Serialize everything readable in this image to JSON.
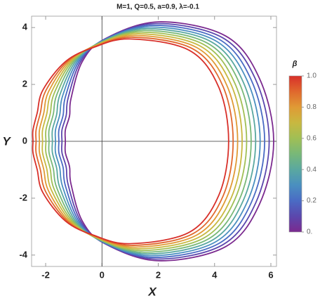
{
  "chart_data": {
    "type": "closed-curve",
    "title": "M=1, Q=0.5, a=0.9, λ=-0.1",
    "x_label": "X",
    "y_label": "Y",
    "xlim": [
      -2.5,
      6.2
    ],
    "ylim": [
      -4.4,
      4.4
    ],
    "xticks": [
      -2,
      0,
      2,
      4,
      6
    ],
    "yticks": [
      -4,
      -2,
      0,
      2,
      4
    ],
    "series": [
      {
        "color": "#7b2a8f",
        "x": [
          6.1,
          5.6,
          4.4,
          2.0,
          0.1,
          -0.7,
          -1.1,
          -1.15,
          -1.3,
          -1.3,
          -1.3,
          -1.15,
          -1.1,
          -0.7,
          0.1,
          2.0,
          4.4,
          5.6
        ],
        "y": [
          0,
          2.2,
          3.7,
          4.2,
          3.6,
          2.8,
          1.5,
          0.9,
          0.4,
          0,
          -0.4,
          -0.9,
          -1.5,
          -2.8,
          -3.6,
          -4.2,
          -3.7,
          -2.2
        ]
      },
      {
        "color": "#5b47ad",
        "x": [
          5.94,
          5.46,
          4.27,
          1.9,
          0.06,
          -0.76,
          -1.2,
          -1.27,
          -1.42,
          -1.42,
          -1.42,
          -1.27,
          -1.2,
          -0.76,
          0.06,
          1.9,
          4.27,
          5.46
        ],
        "y": [
          0,
          2.17,
          3.65,
          4.14,
          3.57,
          2.8,
          1.53,
          0.91,
          0.4,
          0,
          -0.4,
          -0.91,
          -1.53,
          -2.8,
          -3.57,
          -4.14,
          -3.65,
          -2.17
        ]
      },
      {
        "color": "#4a6bc4",
        "x": [
          5.78,
          5.31,
          4.14,
          1.8,
          0.02,
          -0.82,
          -1.3,
          -1.38,
          -1.53,
          -1.53,
          -1.53,
          -1.38,
          -1.3,
          -0.82,
          0.02,
          1.8,
          4.14,
          5.31
        ],
        "y": [
          0,
          2.14,
          3.6,
          4.08,
          3.54,
          2.8,
          1.56,
          0.92,
          0.4,
          0,
          -0.4,
          -0.92,
          -1.56,
          -2.8,
          -3.54,
          -4.08,
          -3.6,
          -2.14
        ]
      },
      {
        "color": "#4a8fc0",
        "x": [
          5.62,
          5.17,
          4.01,
          1.7,
          -0.02,
          -0.88,
          -1.4,
          -1.5,
          -1.65,
          -1.65,
          -1.65,
          -1.5,
          -1.4,
          -0.88,
          -0.02,
          1.7,
          4.01,
          5.17
        ],
        "y": [
          0,
          2.11,
          3.55,
          4.02,
          3.51,
          2.8,
          1.59,
          0.93,
          0.4,
          0,
          -0.4,
          -0.93,
          -1.59,
          -2.8,
          -3.51,
          -4.02,
          -3.55,
          -2.11
        ]
      },
      {
        "color": "#5aa8a0",
        "x": [
          5.46,
          5.02,
          3.88,
          1.6,
          -0.06,
          -0.94,
          -1.5,
          -1.61,
          -1.76,
          -1.76,
          -1.76,
          -1.61,
          -1.5,
          -0.94,
          -0.06,
          1.6,
          3.88,
          5.02
        ],
        "y": [
          0,
          2.08,
          3.5,
          3.96,
          3.48,
          2.8,
          1.62,
          0.94,
          0.4,
          0,
          -0.4,
          -0.94,
          -1.62,
          -2.8,
          -3.48,
          -3.96,
          -3.5,
          -2.08
        ]
      },
      {
        "color": "#78b878",
        "x": [
          5.3,
          4.88,
          3.75,
          1.5,
          -0.1,
          -1.0,
          -1.6,
          -1.73,
          -1.88,
          -1.88,
          -1.88,
          -1.73,
          -1.6,
          -1.0,
          -0.1,
          1.5,
          3.75,
          4.88
        ],
        "y": [
          0,
          2.05,
          3.45,
          3.9,
          3.45,
          2.8,
          1.65,
          0.95,
          0.4,
          0,
          -0.4,
          -0.95,
          -1.65,
          -2.8,
          -3.45,
          -3.9,
          -3.45,
          -2.05
        ]
      },
      {
        "color": "#a0bf55",
        "x": [
          5.14,
          4.73,
          3.62,
          1.4,
          -0.14,
          -1.06,
          -1.7,
          -1.84,
          -1.99,
          -1.99,
          -1.99,
          -1.84,
          -1.7,
          -1.06,
          -0.14,
          1.4,
          3.62,
          4.73
        ],
        "y": [
          0,
          2.02,
          3.4,
          3.84,
          3.42,
          2.8,
          1.68,
          0.96,
          0.4,
          0,
          -0.4,
          -0.96,
          -1.68,
          -2.8,
          -3.42,
          -3.84,
          -3.4,
          -2.02
        ]
      },
      {
        "color": "#c8b840",
        "x": [
          4.98,
          4.59,
          3.49,
          1.3,
          -0.18,
          -1.12,
          -1.8,
          -1.96,
          -2.11,
          -2.11,
          -2.11,
          -1.96,
          -1.8,
          -1.12,
          -0.18,
          1.3,
          3.49,
          4.59
        ],
        "y": [
          0,
          1.99,
          3.35,
          3.78,
          3.39,
          2.8,
          1.71,
          0.97,
          0.4,
          0,
          -0.4,
          -0.97,
          -1.71,
          -2.8,
          -3.39,
          -3.78,
          -3.35,
          -1.99
        ]
      },
      {
        "color": "#e09a35",
        "x": [
          4.82,
          4.44,
          3.36,
          1.2,
          -0.22,
          -1.18,
          -1.9,
          -2.07,
          -2.22,
          -2.22,
          -2.22,
          -2.07,
          -1.9,
          -1.18,
          -0.22,
          1.2,
          3.36,
          4.44
        ],
        "y": [
          0,
          1.96,
          3.3,
          3.72,
          3.36,
          2.8,
          1.74,
          0.98,
          0.4,
          0,
          -0.4,
          -0.98,
          -1.74,
          -2.8,
          -3.36,
          -3.72,
          -3.3,
          -1.96
        ]
      },
      {
        "color": "#e0682d",
        "x": [
          4.66,
          4.3,
          3.23,
          1.1,
          -0.26,
          -1.24,
          -2.0,
          -2.19,
          -2.34,
          -2.34,
          -2.34,
          -2.19,
          -2.0,
          -1.24,
          -0.26,
          1.1,
          3.23,
          4.3
        ],
        "y": [
          0,
          1.93,
          3.25,
          3.66,
          3.33,
          2.8,
          1.77,
          0.99,
          0.4,
          0,
          -0.4,
          -0.99,
          -1.77,
          -2.8,
          -3.33,
          -3.66,
          -3.25,
          -1.93
        ]
      },
      {
        "color": "#d8302a",
        "x": [
          4.5,
          4.15,
          3.1,
          1.0,
          -0.3,
          -1.3,
          -2.1,
          -2.3,
          -2.45,
          -2.45,
          -2.45,
          -2.3,
          -2.1,
          -1.3,
          -0.3,
          1.0,
          3.1,
          4.15
        ],
        "y": [
          0,
          1.9,
          3.2,
          3.6,
          3.3,
          2.8,
          1.8,
          1.0,
          0.4,
          0,
          -0.4,
          -1.0,
          -1.8,
          -2.8,
          -3.3,
          -3.6,
          -3.2,
          -1.9
        ]
      }
    ],
    "colorbar": {
      "title": "β",
      "lim": [
        0,
        1
      ],
      "ticks": [
        {
          "value": 0,
          "label": "0."
        },
        0.2,
        0.4,
        0.6,
        0.8,
        {
          "value": 1,
          "label": "1.0"
        }
      ]
    }
  }
}
